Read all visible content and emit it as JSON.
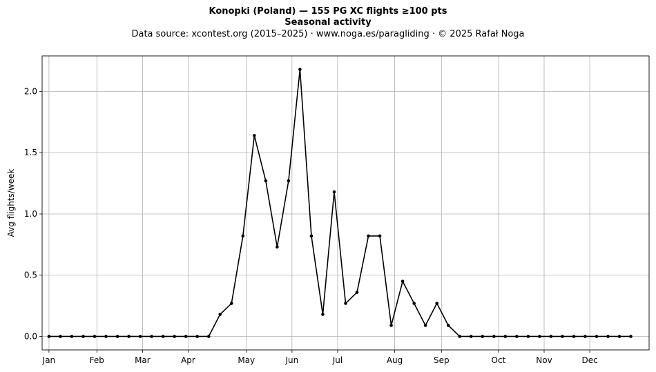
{
  "chart_data": {
    "type": "line",
    "title": "Konopki (Poland)  —  155 PG XC flights ≥100 pts",
    "subtitle": "Seasonal activity",
    "source_note": "Data source: xcontest.org (2015–2025)  ·  www.noga.es/paragliding  ·  © 2025 Rafał Noga",
    "xlabel": "",
    "ylabel": "Avg flights/week",
    "x": [
      1,
      2,
      3,
      4,
      5,
      6,
      7,
      8,
      9,
      10,
      11,
      12,
      13,
      14,
      15,
      16,
      17,
      18,
      19,
      20,
      21,
      22,
      23,
      24,
      25,
      26,
      27,
      28,
      29,
      30,
      31,
      32,
      33,
      34,
      35,
      36,
      37,
      38,
      39,
      40,
      41,
      42,
      43,
      44,
      45,
      46,
      47,
      48,
      49,
      50,
      51,
      52
    ],
    "xlim": [
      0.4,
      53.6
    ],
    "x_ticks": [
      {
        "x": 1,
        "label": "Jan"
      },
      {
        "x": 5.2,
        "label": "Feb"
      },
      {
        "x": 9.2,
        "label": "Mar"
      },
      {
        "x": 13.2,
        "label": "Apr"
      },
      {
        "x": 18.3,
        "label": "May"
      },
      {
        "x": 22.3,
        "label": "Jun"
      },
      {
        "x": 26.3,
        "label": "Jul"
      },
      {
        "x": 31.3,
        "label": "Aug"
      },
      {
        "x": 35.4,
        "label": "Sep"
      },
      {
        "x": 40.4,
        "label": "Oct"
      },
      {
        "x": 44.4,
        "label": "Nov"
      },
      {
        "x": 48.4,
        "label": "Dec"
      }
    ],
    "ylim": [
      -0.11,
      2.29
    ],
    "y_ticks": [
      0.0,
      0.5,
      1.0,
      1.5,
      2.0
    ],
    "y_tick_labels": [
      "0.0",
      "0.5",
      "1.0",
      "1.5",
      "2.0"
    ],
    "grid": true,
    "series": [
      {
        "name": "",
        "color": "#000000",
        "values": [
          0,
          0,
          0,
          0,
          0,
          0,
          0,
          0,
          0,
          0,
          0,
          0,
          0,
          0,
          0,
          0.18,
          0.27,
          0.82,
          1.64,
          1.27,
          0.73,
          1.27,
          2.18,
          0.82,
          0.18,
          1.18,
          0.27,
          0.36,
          0.82,
          0.82,
          0.09,
          0.45,
          0.27,
          0.09,
          0.27,
          0.09,
          0,
          0,
          0,
          0,
          0,
          0,
          0,
          0,
          0,
          0,
          0,
          0,
          0,
          0,
          0,
          0
        ]
      }
    ]
  }
}
